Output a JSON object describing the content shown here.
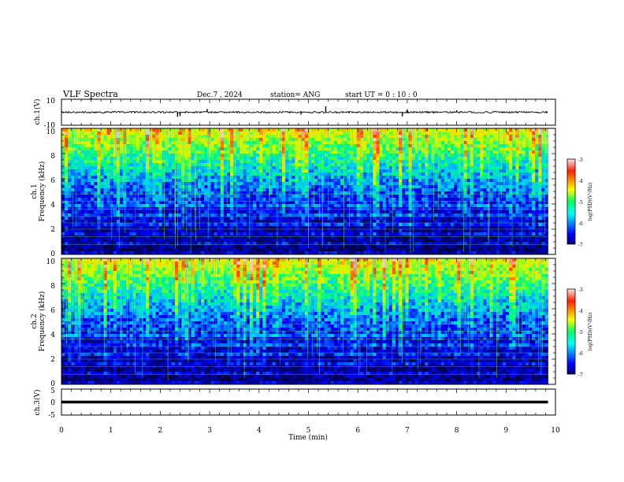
{
  "header": {
    "title": "VLF Spectra",
    "date": "Dec.7 , 2024",
    "station": "station= ANG",
    "start": "start UT =  0 : 10 : 0"
  },
  "chart_data": [
    {
      "type": "line",
      "ylabel": "ch.1(V)",
      "ylim": [
        -10,
        10
      ],
      "yticks": [
        "10",
        "-10"
      ],
      "xlim": [
        0,
        10
      ],
      "baseline": 0,
      "spikes": [
        {
          "x": 2.35,
          "y": -3.5
        },
        {
          "x": 2.4,
          "y": -3.0
        },
        {
          "x": 2.95,
          "y": 2.5
        },
        {
          "x": 4.85,
          "y": -1.8
        },
        {
          "x": 5.35,
          "y": 4.5
        },
        {
          "x": 6.9,
          "y": -3.2
        },
        {
          "x": 7.0,
          "y": 2.2
        },
        {
          "x": 8.0,
          "y": 1.5
        }
      ]
    },
    {
      "type": "heatmap",
      "ylabel": "ch.1",
      "ylabel2": "Frequency (kHz)",
      "ylim": [
        0,
        10
      ],
      "yticks": [
        "10",
        "8",
        "6",
        "4",
        "2",
        "0"
      ],
      "xlim": [
        0,
        9.85
      ],
      "colorbar": {
        "label": "log(PSD)(V²/Hz)",
        "range": [
          -7,
          -3
        ],
        "ticks": [
          "-3",
          "-4",
          "-5",
          "-6",
          "-7"
        ]
      }
    },
    {
      "type": "heatmap",
      "ylabel": "ch.2",
      "ylabel2": "Frequency (kHz)",
      "ylim": [
        0,
        10
      ],
      "yticks": [
        "10",
        "8",
        "6",
        "4",
        "2",
        "0"
      ],
      "xlim": [
        0,
        9.85
      ],
      "colorbar": {
        "label": "log(PSD)(V²/Hz)",
        "range": [
          -7,
          -3
        ],
        "ticks": [
          "-3",
          "-4",
          "-5",
          "-6",
          "-7"
        ]
      }
    },
    {
      "type": "line",
      "ylabel": "ch.3(V)",
      "ylim": [
        -5,
        5
      ],
      "yticks": [
        "5",
        "0",
        "-5"
      ],
      "xlim": [
        0,
        10
      ],
      "baseline": 0
    }
  ],
  "xaxis": {
    "label": "Time (min)",
    "ticks": [
      "0",
      "1",
      "2",
      "3",
      "4",
      "5",
      "6",
      "7",
      "8",
      "9",
      "10"
    ]
  }
}
